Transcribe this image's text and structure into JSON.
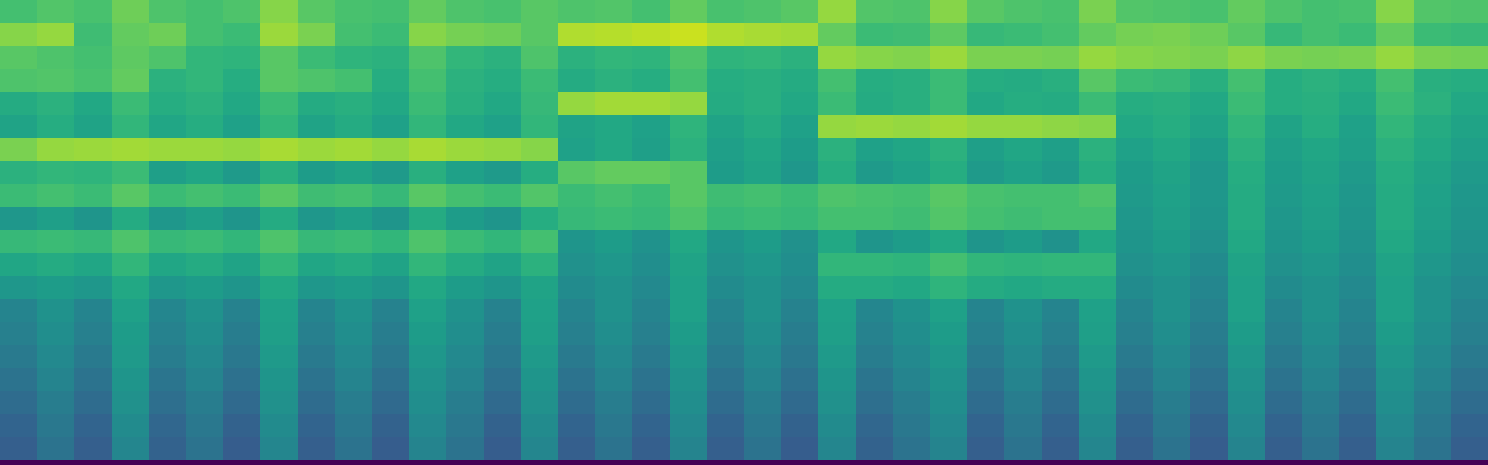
{
  "chart_data": {
    "type": "heatmap",
    "color": "viridis",
    "tick_labels": false,
    "zlim": [
      0,
      100
    ],
    "cells": [
      [
        70,
        73,
        71,
        78,
        72,
        70,
        72,
        82,
        74,
        71,
        70,
        76,
        72,
        71,
        74,
        72,
        73,
        70,
        76,
        71,
        72,
        74,
        84,
        73,
        72,
        82,
        74,
        72,
        71,
        80,
        73,
        72,
        71,
        76,
        72,
        70,
        71,
        82,
        73,
        72
      ],
      [
        82,
        84,
        69,
        76,
        78,
        70,
        68,
        85,
        80,
        70,
        68,
        82,
        79,
        78,
        74,
        88,
        89,
        90,
        92,
        88,
        87,
        86,
        76,
        68,
        69,
        75,
        67,
        68,
        70,
        76,
        79,
        80,
        78,
        74,
        67,
        70,
        68,
        76,
        68,
        67
      ],
      [
        74,
        72,
        70,
        75,
        72,
        66,
        65,
        74,
        68,
        65,
        64,
        72,
        66,
        64,
        72,
        64,
        66,
        65,
        72,
        65,
        66,
        64,
        84,
        82,
        81,
        85,
        80,
        80,
        79,
        84,
        82,
        81,
        80,
        83,
        80,
        79,
        80,
        84,
        80,
        79
      ],
      [
        72,
        73,
        71,
        76,
        64,
        66,
        62,
        74,
        72,
        70,
        62,
        70,
        64,
        62,
        68,
        61,
        64,
        62,
        70,
        62,
        63,
        61,
        70,
        62,
        63,
        68,
        62,
        61,
        63,
        74,
        68,
        67,
        63,
        70,
        62,
        64,
        62,
        70,
        63,
        62
      ],
      [
        61,
        64,
        60,
        68,
        62,
        64,
        60,
        68,
        61,
        63,
        60,
        68,
        63,
        60,
        67,
        84,
        86,
        86,
        84,
        61,
        63,
        60,
        68,
        61,
        63,
        68,
        60,
        62,
        61,
        68,
        62,
        63,
        60,
        68,
        62,
        63,
        60,
        68,
        64,
        60
      ],
      [
        58,
        62,
        58,
        66,
        59,
        62,
        57,
        66,
        58,
        61,
        57,
        66,
        60,
        57,
        66,
        58,
        60,
        57,
        65,
        58,
        61,
        57,
        84,
        85,
        84,
        86,
        84,
        84,
        83,
        82,
        60,
        62,
        58,
        66,
        58,
        62,
        57,
        66,
        61,
        58
      ],
      [
        80,
        84,
        85,
        86,
        85,
        85,
        84,
        87,
        85,
        86,
        84,
        87,
        85,
        84,
        82,
        57,
        60,
        56,
        64,
        56,
        59,
        55,
        64,
        57,
        59,
        64,
        56,
        59,
        56,
        64,
        57,
        60,
        55,
        64,
        56,
        59,
        56,
        64,
        60,
        56
      ],
      [
        64,
        66,
        65,
        68,
        56,
        59,
        54,
        63,
        55,
        58,
        54,
        63,
        57,
        54,
        62,
        74,
        76,
        76,
        74,
        55,
        58,
        53,
        62,
        54,
        57,
        62,
        54,
        57,
        54,
        62,
        55,
        58,
        53,
        62,
        55,
        58,
        54,
        62,
        58,
        54
      ],
      [
        68,
        70,
        68,
        74,
        68,
        70,
        68,
        74,
        69,
        70,
        67,
        74,
        70,
        68,
        73,
        68,
        70,
        68,
        74,
        69,
        70,
        68,
        72,
        71,
        70,
        74,
        71,
        70,
        70,
        72,
        54,
        57,
        53,
        61,
        54,
        57,
        53,
        61,
        57,
        53
      ],
      [
        53,
        56,
        52,
        61,
        53,
        56,
        52,
        61,
        53,
        56,
        52,
        61,
        55,
        52,
        62,
        67,
        68,
        67,
        72,
        67,
        68,
        67,
        70,
        70,
        69,
        73,
        70,
        69,
        70,
        70,
        53,
        56,
        52,
        61,
        53,
        56,
        52,
        61,
        56,
        52
      ],
      [
        67,
        68,
        67,
        72,
        67,
        68,
        66,
        72,
        67,
        68,
        66,
        72,
        68,
        66,
        70,
        52,
        55,
        51,
        60,
        52,
        55,
        50,
        60,
        52,
        55,
        60,
        52,
        55,
        51,
        60,
        52,
        55,
        50,
        60,
        52,
        55,
        51,
        60,
        55,
        51
      ],
      [
        59,
        61,
        59,
        66,
        59,
        61,
        58,
        66,
        59,
        61,
        58,
        66,
        61,
        58,
        64,
        50,
        53,
        49,
        58,
        50,
        53,
        49,
        66,
        66,
        65,
        70,
        66,
        65,
        66,
        66,
        50,
        53,
        48,
        58,
        50,
        53,
        49,
        58,
        53,
        49
      ],
      [
        53,
        55,
        53,
        60,
        53,
        55,
        52,
        60,
        53,
        55,
        52,
        60,
        55,
        52,
        58,
        48,
        51,
        47,
        57,
        48,
        51,
        47,
        61,
        61,
        60,
        65,
        61,
        60,
        61,
        61,
        48,
        51,
        46,
        57,
        48,
        51,
        47,
        57,
        51,
        47
      ],
      [
        45,
        51,
        45,
        57,
        46,
        51,
        44,
        57,
        45,
        51,
        44,
        57,
        51,
        44,
        57,
        45,
        51,
        45,
        57,
        45,
        51,
        44,
        57,
        46,
        51,
        57,
        45,
        51,
        45,
        57,
        45,
        51,
        44,
        57,
        45,
        51,
        45,
        57,
        51,
        45
      ],
      [
        43,
        49,
        43,
        55,
        44,
        49,
        42,
        56,
        43,
        49,
        42,
        55,
        49,
        42,
        56,
        43,
        49,
        43,
        55,
        43,
        49,
        42,
        56,
        44,
        49,
        55,
        43,
        49,
        43,
        56,
        43,
        49,
        42,
        55,
        43,
        49,
        43,
        55,
        49,
        43
      ],
      [
        41,
        47,
        41,
        54,
        42,
        47,
        40,
        54,
        41,
        47,
        40,
        53,
        47,
        40,
        54,
        41,
        47,
        41,
        53,
        41,
        47,
        40,
        54,
        42,
        47,
        53,
        41,
        47,
        41,
        54,
        41,
        47,
        40,
        53,
        41,
        47,
        41,
        53,
        47,
        41
      ],
      [
        38,
        45,
        38,
        52,
        39,
        45,
        37,
        52,
        38,
        45,
        37,
        51,
        45,
        37,
        52,
        38,
        45,
        38,
        51,
        38,
        45,
        37,
        52,
        39,
        45,
        51,
        38,
        45,
        38,
        52,
        38,
        45,
        37,
        51,
        38,
        45,
        38,
        51,
        45,
        38
      ],
      [
        35,
        42,
        35,
        50,
        36,
        42,
        34,
        50,
        35,
        42,
        34,
        49,
        42,
        34,
        50,
        35,
        42,
        35,
        49,
        35,
        42,
        34,
        50,
        36,
        42,
        49,
        35,
        42,
        35,
        50,
        35,
        42,
        34,
        49,
        35,
        42,
        35,
        49,
        42,
        35
      ],
      [
        32,
        40,
        32,
        48,
        33,
        40,
        31,
        48,
        32,
        40,
        31,
        47,
        40,
        31,
        48,
        32,
        40,
        32,
        47,
        32,
        40,
        31,
        48,
        33,
        40,
        47,
        32,
        40,
        32,
        48,
        32,
        40,
        31,
        47,
        32,
        40,
        32,
        47,
        40,
        32
      ],
      [
        30,
        38,
        30,
        46,
        31,
        38,
        29,
        46,
        30,
        38,
        29,
        45,
        38,
        29,
        46,
        30,
        38,
        30,
        45,
        30,
        38,
        29,
        46,
        31,
        38,
        45,
        30,
        38,
        30,
        46,
        30,
        38,
        29,
        45,
        30,
        38,
        30,
        45,
        38,
        30
      ]
    ]
  }
}
